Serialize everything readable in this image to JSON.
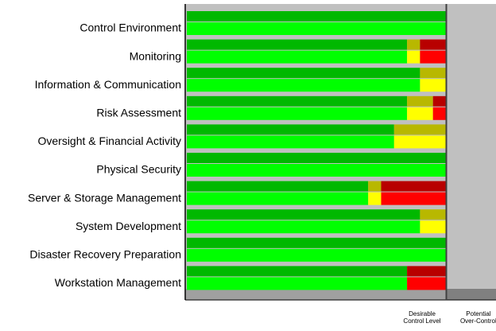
{
  "chart_data": {
    "type": "stacked-bar-horizontal",
    "categories": [
      "Control Environment",
      "Monitoring",
      "Information & Communication",
      "Risk Assessment",
      "Oversight & Financial Activity",
      "Physical Security",
      "Server & Storage Management",
      "System Development",
      "Disaster Recovery Preparation",
      "Workstation Management"
    ],
    "series": [
      {
        "color": "#00ff00",
        "values": [
          100,
          85,
          90,
          85,
          80,
          100,
          70,
          90,
          100,
          85
        ]
      },
      {
        "color": "#ffff00",
        "values": [
          0,
          5,
          10,
          10,
          20,
          0,
          5,
          10,
          0,
          0
        ]
      },
      {
        "color": "#ff0000",
        "values": [
          0,
          10,
          0,
          5,
          0,
          0,
          25,
          0,
          0,
          15
        ]
      }
    ],
    "xlim": [
      0,
      120
    ],
    "annotations": [
      {
        "text": [
          "Desirable",
          "Control Level"
        ],
        "value": 100
      },
      {
        "text": [
          "Potential",
          "Over-Control"
        ],
        "value": 111
      }
    ]
  }
}
